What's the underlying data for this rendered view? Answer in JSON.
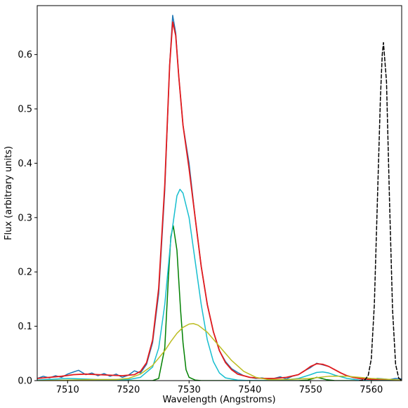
{
  "chart_data": {
    "type": "line",
    "title": "",
    "xlabel": "Wavelength (Angstroms)",
    "ylabel": "Flux (arbitrary units)",
    "xlim": [
      7505,
      7565
    ],
    "ylim": [
      0,
      0.69
    ],
    "grid": false,
    "legend": "none",
    "x_ticks": [
      7510,
      7520,
      7530,
      7540,
      7550,
      7560
    ],
    "x_tick_labels": [
      "7510",
      "7520",
      "7530",
      "7540",
      "7550",
      "7560"
    ],
    "y_ticks": [
      0.0,
      0.1,
      0.2,
      0.3,
      0.4,
      0.5,
      0.6
    ],
    "y_tick_labels": [
      "0.0",
      "0.1",
      "0.2",
      "0.3",
      "0.4",
      "0.5",
      "0.6"
    ],
    "series": [
      {
        "style": "observed",
        "color": "#1f77b4",
        "dashed": false,
        "x": [
          7505.0,
          7506.0,
          7507.0,
          7508.0,
          7509.0,
          7510.0,
          7511.0,
          7511.8,
          7513.0,
          7514.0,
          7515.0,
          7516.0,
          7517.0,
          7518.0,
          7519.0,
          7520.0,
          7521.0,
          7522.0,
          7523.0,
          7524.0,
          7525.0,
          7526.0,
          7526.8,
          7527.3,
          7527.8,
          7528.3,
          7529.0,
          7530.0,
          7531.0,
          7532.0,
          7533.0,
          7534.0,
          7535.0,
          7536.0,
          7537.0,
          7538.0,
          7539.0,
          7540.0,
          7541.0,
          7542.0,
          7543.0,
          7544.0,
          7545.0,
          7546.0,
          7547.0,
          7548.0,
          7549.0,
          7550.0,
          7551.0,
          7552.0,
          7553.0,
          7554.0,
          7555.0,
          7556.0,
          7557.0,
          7558.0,
          7559.0,
          7560.0,
          7561.0,
          7562.0,
          7563.0,
          7564.0,
          7565.0
        ],
        "y": [
          0.004,
          0.008,
          0.005,
          0.009,
          0.006,
          0.012,
          0.016,
          0.019,
          0.011,
          0.014,
          0.009,
          0.013,
          0.008,
          0.012,
          0.006,
          0.01,
          0.018,
          0.014,
          0.03,
          0.07,
          0.16,
          0.35,
          0.58,
          0.672,
          0.64,
          0.56,
          0.47,
          0.4,
          0.3,
          0.21,
          0.14,
          0.09,
          0.055,
          0.035,
          0.022,
          0.015,
          0.009,
          0.006,
          0.004,
          0.005,
          0.003,
          0.004,
          0.007,
          0.003,
          0.008,
          0.011,
          0.018,
          0.024,
          0.032,
          0.029,
          0.026,
          0.02,
          0.014,
          0.009,
          0.006,
          0.004,
          0.003,
          0.002,
          0.004,
          0.003,
          0.002,
          0.004,
          0.003
        ]
      },
      {
        "style": "total-fit",
        "color": "#e31a1c",
        "dashed": false,
        "x": [
          7505.0,
          7507.0,
          7509.0,
          7511.0,
          7513.0,
          7515.0,
          7517.0,
          7519.0,
          7521.0,
          7522.0,
          7523.0,
          7524.0,
          7525.0,
          7526.0,
          7526.8,
          7527.3,
          7527.8,
          7528.3,
          7529.0,
          7530.0,
          7531.0,
          7532.0,
          7533.0,
          7534.0,
          7535.0,
          7536.0,
          7537.0,
          7538.0,
          7540.0,
          7542.0,
          7544.0,
          7546.0,
          7548.0,
          7549.0,
          7550.0,
          7551.0,
          7552.0,
          7553.0,
          7554.0,
          7555.0,
          7556.0,
          7557.0,
          7558.0,
          7560.0,
          7562.0,
          7565.0
        ],
        "y": [
          0.004,
          0.006,
          0.008,
          0.011,
          0.012,
          0.011,
          0.01,
          0.009,
          0.011,
          0.017,
          0.033,
          0.075,
          0.17,
          0.36,
          0.58,
          0.66,
          0.635,
          0.56,
          0.47,
          0.39,
          0.3,
          0.21,
          0.14,
          0.09,
          0.055,
          0.033,
          0.02,
          0.012,
          0.006,
          0.004,
          0.004,
          0.006,
          0.011,
          0.018,
          0.026,
          0.031,
          0.03,
          0.026,
          0.02,
          0.014,
          0.009,
          0.006,
          0.004,
          0.002,
          0.001,
          0.0
        ]
      },
      {
        "style": "narrow-component",
        "color": "#008000",
        "dashed": false,
        "x": [
          7505.0,
          7520.0,
          7524.0,
          7525.0,
          7526.0,
          7526.6,
          7527.0,
          7527.4,
          7528.0,
          7528.6,
          7529.0,
          7529.5,
          7530.0,
          7531.0,
          7532.0,
          7548.0,
          7549.5,
          7550.5,
          7551.0,
          7551.5,
          7552.5,
          7554.0,
          7565.0
        ],
        "y": [
          0.0,
          0.0,
          0.0,
          0.004,
          0.06,
          0.19,
          0.265,
          0.285,
          0.24,
          0.13,
          0.07,
          0.02,
          0.006,
          0.001,
          0.0,
          0.0,
          0.001,
          0.004,
          0.006,
          0.005,
          0.002,
          0.0,
          0.0
        ]
      },
      {
        "style": "medium-component",
        "color": "#17becf",
        "dashed": false,
        "x": [
          7505.0,
          7510.0,
          7515.0,
          7520.0,
          7522.0,
          7524.0,
          7525.0,
          7526.0,
          7527.0,
          7528.0,
          7528.5,
          7529.0,
          7530.0,
          7531.0,
          7532.0,
          7533.0,
          7534.0,
          7535.0,
          7536.0,
          7538.0,
          7540.0,
          7545.0,
          7548.0,
          7550.0,
          7551.0,
          7552.0,
          7553.0,
          7554.0,
          7556.0,
          7558.0,
          7560.0,
          7565.0
        ],
        "y": [
          0.001,
          0.004,
          0.002,
          0.002,
          0.006,
          0.025,
          0.06,
          0.14,
          0.26,
          0.34,
          0.352,
          0.345,
          0.3,
          0.22,
          0.14,
          0.075,
          0.035,
          0.014,
          0.005,
          0.001,
          0.0,
          0.0,
          0.004,
          0.011,
          0.015,
          0.016,
          0.014,
          0.01,
          0.004,
          0.001,
          0.0,
          0.0
        ]
      },
      {
        "style": "broad-component",
        "color": "#bcbd22",
        "dashed": false,
        "x": [
          7505.0,
          7510.0,
          7515.0,
          7518.0,
          7520.0,
          7522.0,
          7524.0,
          7526.0,
          7527.0,
          7528.0,
          7529.0,
          7530.0,
          7530.7,
          7531.5,
          7533.0,
          7535.0,
          7537.0,
          7539.0,
          7541.0,
          7543.0,
          7546.0,
          7550.0,
          7553.0,
          7556.0,
          7560.0,
          7565.0
        ],
        "y": [
          0.0,
          0.001,
          0.002,
          0.002,
          0.004,
          0.012,
          0.028,
          0.055,
          0.072,
          0.087,
          0.098,
          0.104,
          0.105,
          0.102,
          0.089,
          0.063,
          0.037,
          0.017,
          0.006,
          0.002,
          0.002,
          0.004,
          0.008,
          0.008,
          0.004,
          0.001
        ]
      },
      {
        "style": "reference-line",
        "color": "#000000",
        "dashed": true,
        "x": [
          7558.0,
          7559.0,
          7559.5,
          7560.0,
          7560.5,
          7561.0,
          7561.5,
          7561.8,
          7562.0,
          7562.5,
          7563.0,
          7563.5,
          7564.0,
          7564.5,
          7565.0
        ],
        "y": [
          0.0,
          0.002,
          0.01,
          0.04,
          0.14,
          0.33,
          0.52,
          0.6,
          0.622,
          0.55,
          0.33,
          0.13,
          0.03,
          0.005,
          0.0
        ]
      }
    ]
  }
}
